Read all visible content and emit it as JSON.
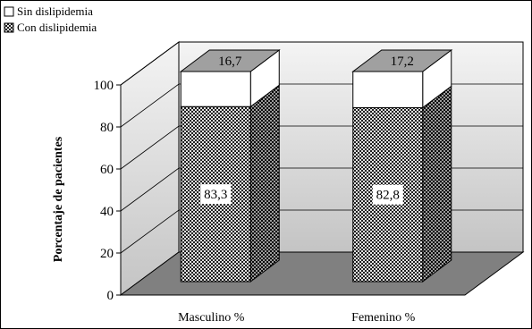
{
  "chart_data": {
    "type": "bar",
    "stacked": true,
    "three_d": true,
    "categories": [
      "Masculino %",
      "Femenino %"
    ],
    "series": [
      {
        "name": "Con dislipidemia",
        "values": [
          83.3,
          82.8
        ],
        "labels": [
          "83,3",
          "82,8"
        ],
        "fill": "checkered-dark"
      },
      {
        "name": "Sin dislipidemia",
        "values": [
          16.7,
          17.2
        ],
        "labels": [
          "16,7",
          "17,2"
        ],
        "fill": "white"
      }
    ],
    "ylabel": "Porcentaje de pacientes",
    "ylim": [
      0,
      100
    ],
    "yticks": [
      0,
      20,
      40,
      60,
      80,
      100
    ],
    "grid": true,
    "legend": "top-left",
    "colors": {
      "floor": "#808080",
      "wall_top": "#f4f4f4",
      "wall_bottom": "#c4c4c4",
      "bar_dark": "#1a1a1a",
      "top_face": "#a0a0a0"
    }
  }
}
